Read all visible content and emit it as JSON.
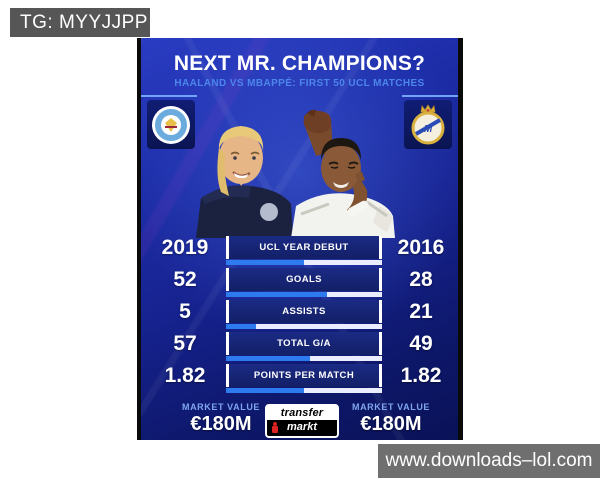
{
  "overlay": {
    "tg_label": "TG: MYYJJPP",
    "watermark": "www.downloads–lol.com"
  },
  "header": {
    "title": "NEXT MR. CHAMPIONS?",
    "subtitle": "HAALAND VS MBAPPÉ: FIRST 50 UCL MATCHES"
  },
  "teams": {
    "left_name": "Manchester City",
    "right_name": "Real Madrid"
  },
  "stats": {
    "rows": [
      {
        "label": "UCL YEAR DEBUT",
        "left": "2019",
        "right": "2016",
        "left_pct": 50
      },
      {
        "label": "GOALS",
        "left": "52",
        "right": "28",
        "left_pct": 65
      },
      {
        "label": "ASSISTS",
        "left": "5",
        "right": "21",
        "left_pct": 19
      },
      {
        "label": "TOTAL G/A",
        "left": "57",
        "right": "49",
        "left_pct": 54
      },
      {
        "label": "POINTS PER MATCH",
        "left": "1.82",
        "right": "1.82",
        "left_pct": 50
      }
    ]
  },
  "footer": {
    "market_value_label_left": "MARKET VALUE",
    "market_value_label_right": "MARKET VALUE",
    "left_value": "€180M",
    "right_value": "€180M",
    "logo_top": "transfer",
    "logo_bottom": "markt"
  },
  "colors": {
    "accent_blue": "#2e7bf0",
    "subtitle_blue": "#4c86ea",
    "bg_deep": "#0d1768",
    "bg_top": "#2a3cc2",
    "pill_navy": "#131f66",
    "city_sky": "#6cabdd",
    "madrid_gold": "#d9bije"
  },
  "chart_data": {
    "type": "table",
    "title": "NEXT MR. CHAMPIONS?",
    "subtitle": "HAALAND VS MBAPPÉ: FIRST 50 UCL MATCHES",
    "categories": [
      "UCL YEAR DEBUT",
      "GOALS",
      "ASSISTS",
      "TOTAL G/A",
      "POINTS PER MATCH"
    ],
    "series": [
      {
        "name": "Haaland (Manchester City)",
        "values": [
          "2019",
          "52",
          "5",
          "57",
          "1.82"
        ],
        "market_value": "€180M"
      },
      {
        "name": "Mbappé (Real Madrid)",
        "values": [
          "2016",
          "28",
          "21",
          "49",
          "1.82"
        ],
        "market_value": "€180M"
      }
    ],
    "legend_position": "sides",
    "notes": "comparison bars under each row show Haaland share in blue vs Mbappé share in white"
  }
}
